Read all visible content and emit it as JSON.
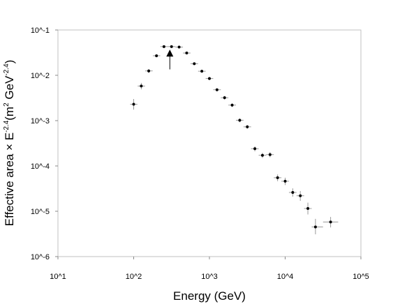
{
  "chart_data": {
    "type": "scatter",
    "title": "",
    "xlabel": "Energy (GeV)",
    "ylabel": {
      "main": "Effective area × E",
      "exp1": "-2.4",
      "paren_open": "(m",
      "exp2": "2",
      "unit": " GeV",
      "exp3": "-2.4",
      "paren_close": ")"
    },
    "x_scale": "log",
    "y_scale": "log",
    "xlim": [
      10,
      100000
    ],
    "ylim": [
      1e-06,
      0.1
    ],
    "x_ticks": [
      {
        "value": 10,
        "label": "10^1"
      },
      {
        "value": 100,
        "label": "10^2"
      },
      {
        "value": 1000,
        "label": "10^3"
      },
      {
        "value": 10000,
        "label": "10^4"
      },
      {
        "value": 100000,
        "label": "10^5"
      }
    ],
    "y_ticks": [
      {
        "value": 0.1,
        "label": "10^-1"
      },
      {
        "value": 0.01,
        "label": "10^-2"
      },
      {
        "value": 0.001,
        "label": "10^-3"
      },
      {
        "value": 0.0001,
        "label": "10^-4"
      },
      {
        "value": 1e-05,
        "label": "10^-5"
      },
      {
        "value": 1e-06,
        "label": "10^-6"
      }
    ],
    "grid": false,
    "series": [
      {
        "points": [
          {
            "x": 100,
            "y": 0.0023,
            "xerr": [
              90,
              112
            ],
            "yerr": [
              0.00175,
              0.003
            ]
          },
          {
            "x": 126,
            "y": 0.0058,
            "xerr": [
              113,
              141
            ],
            "yerr": [
              0.0049,
              0.0068
            ]
          },
          {
            "x": 158,
            "y": 0.0125,
            "xerr": [
              142,
              178
            ],
            "yerr": [
              0.0112,
              0.0138
            ]
          },
          {
            "x": 200,
            "y": 0.027,
            "xerr": [
              179,
              224
            ],
            "yerr": [
              0.025,
              0.029
            ]
          },
          {
            "x": 251,
            "y": 0.043,
            "xerr": [
              225,
              282
            ],
            "yerr": [
              0.041,
              0.045
            ]
          },
          {
            "x": 316,
            "y": 0.043,
            "xerr": [
              283,
              355
            ],
            "yerr": [
              0.041,
              0.045
            ]
          },
          {
            "x": 398,
            "y": 0.042,
            "xerr": [
              356,
              447
            ],
            "yerr": [
              0.04,
              0.044
            ]
          },
          {
            "x": 501,
            "y": 0.031,
            "xerr": [
              448,
              562
            ],
            "yerr": [
              0.029,
              0.033
            ]
          },
          {
            "x": 631,
            "y": 0.018,
            "xerr": [
              563,
              708
            ],
            "yerr": [
              0.0168,
              0.0193
            ]
          },
          {
            "x": 794,
            "y": 0.0123,
            "xerr": [
              709,
              891
            ],
            "yerr": [
              0.0114,
              0.0132
            ]
          },
          {
            "x": 1000,
            "y": 0.0085,
            "xerr": [
              892,
              1122
            ],
            "yerr": [
              0.0078,
              0.0092
            ]
          },
          {
            "x": 1259,
            "y": 0.0048,
            "xerr": [
              1123,
              1413
            ],
            "yerr": [
              0.0044,
              0.0052
            ]
          },
          {
            "x": 1585,
            "y": 0.0032,
            "xerr": [
              1414,
              1778
            ],
            "yerr": [
              0.0029,
              0.0035
            ]
          },
          {
            "x": 1995,
            "y": 0.0022,
            "xerr": [
              1779,
              2239
            ],
            "yerr": [
              0.002,
              0.0024
            ]
          },
          {
            "x": 2512,
            "y": 0.00102,
            "xerr": [
              2240,
              2818
            ],
            "yerr": [
              0.00092,
              0.00112
            ]
          },
          {
            "x": 3162,
            "y": 0.00073,
            "xerr": [
              2819,
              3548
            ],
            "yerr": [
              0.00066,
              0.0008
            ]
          },
          {
            "x": 3981,
            "y": 0.00024,
            "xerr": [
              3549,
              4467
            ],
            "yerr": [
              0.00021,
              0.00027
            ]
          },
          {
            "x": 5012,
            "y": 0.000172,
            "xerr": [
              4468,
              5623
            ],
            "yerr": [
              0.00015,
              0.000195
            ]
          },
          {
            "x": 6310,
            "y": 0.000178,
            "xerr": [
              5624,
              7079
            ],
            "yerr": [
              0.000155,
              0.000203
            ]
          },
          {
            "x": 7943,
            "y": 5.5e-05,
            "xerr": [
              7080,
              8913
            ],
            "yerr": [
              4.6e-05,
              6.5e-05
            ]
          },
          {
            "x": 10000,
            "y": 4.6e-05,
            "xerr": [
              8914,
              11220
            ],
            "yerr": [
              3.8e-05,
              5.5e-05
            ]
          },
          {
            "x": 12590,
            "y": 2.6e-05,
            "xerr": [
              11220,
              14130
            ],
            "yerr": [
              2.1e-05,
              3.2e-05
            ]
          },
          {
            "x": 15850,
            "y": 2.2e-05,
            "xerr": [
              14130,
              17780
            ],
            "yerr": [
              1.7e-05,
              2.8e-05
            ]
          },
          {
            "x": 19950,
            "y": 1.15e-05,
            "xerr": [
              17780,
              22390
            ],
            "yerr": [
              8.5e-06,
              1.55e-05
            ]
          },
          {
            "x": 25120,
            "y": 4.5e-06,
            "xerr": [
              22390,
              31620
            ],
            "yerr": [
              3.1e-06,
              6.8e-06
            ]
          },
          {
            "x": 39810,
            "y": 5.8e-06,
            "xerr": [
              31620,
              50120
            ],
            "yerr": [
              4.4e-06,
              7.5e-06
            ]
          }
        ]
      }
    ],
    "annotations": [
      {
        "type": "arrow",
        "x": 300,
        "y_tail": 0.0135,
        "y_head": 0.037
      }
    ]
  }
}
